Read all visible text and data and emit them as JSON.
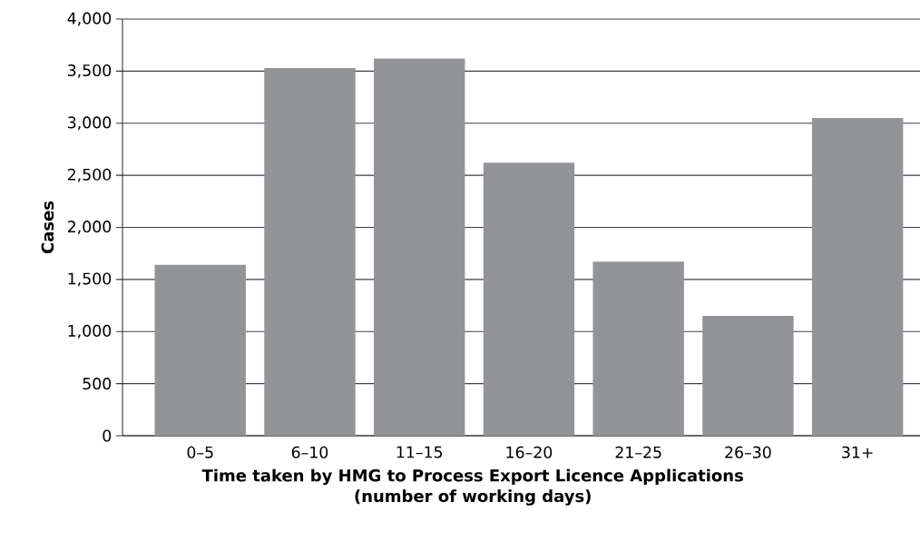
{
  "chart_data": {
    "type": "bar",
    "xlabel": "Time taken by HMG to Process Export Licence Applications\n(number of working days)",
    "ylabel": "Cases",
    "categories": [
      "0–5",
      "6–10",
      "11–15",
      "16–20",
      "21–25",
      "26–30",
      "31+"
    ],
    "values": [
      1640,
      3530,
      3620,
      2620,
      1670,
      1150,
      3050
    ],
    "color": "#939497",
    "ylim": [
      0,
      4000
    ],
    "yticks": [
      {
        "value": 0,
        "label": "0"
      },
      {
        "value": 500,
        "label": "500"
      },
      {
        "value": 1000,
        "label": "1,000"
      },
      {
        "value": 1500,
        "label": "1,500"
      },
      {
        "value": 2000,
        "label": "2,000"
      },
      {
        "value": 2500,
        "label": "2,500"
      },
      {
        "value": 3000,
        "label": "3,000"
      },
      {
        "value": 3500,
        "label": "3,500"
      },
      {
        "value": 4000,
        "label": "4,000"
      }
    ],
    "grid": "y"
  }
}
